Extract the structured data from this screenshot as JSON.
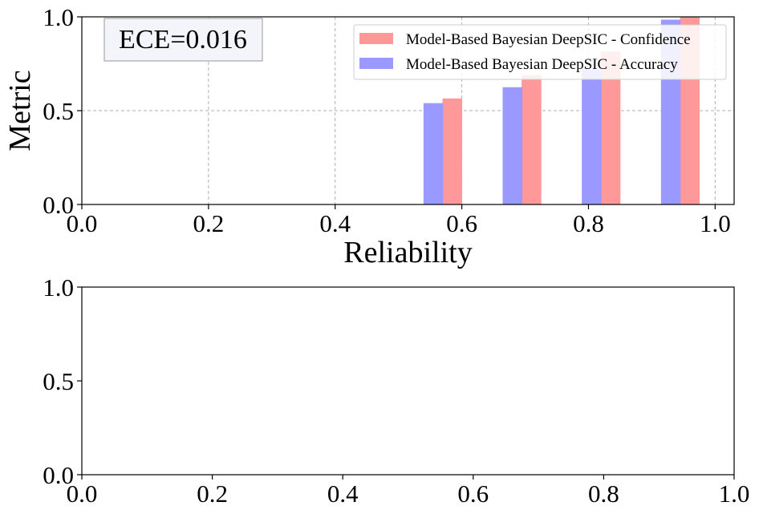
{
  "chart_data": [
    {
      "type": "bar",
      "xlabel": "Reliability",
      "ylabel": "Metric",
      "xlim": [
        0.0,
        1.03
      ],
      "ylim": [
        0.0,
        1.0
      ],
      "xticks": [
        "0.0",
        "0.2",
        "0.4",
        "0.6",
        "0.8",
        "1.0"
      ],
      "yticks": [
        "0.0",
        "0.5",
        "1.0"
      ],
      "grid": true,
      "legend_position": "top-right",
      "annotation": "ECE=0.016",
      "series": [
        {
          "name": "Model-Based Bayesian DeepSIC - Confidence",
          "color": "#ff9999",
          "x": [
            0.585,
            0.71,
            0.835,
            0.96
          ],
          "values": [
            0.565,
            0.69,
            0.815,
            1.0
          ]
        },
        {
          "name": "Model-Based Bayesian DeepSIC - Accuracy",
          "color": "#9999ff",
          "x": [
            0.555,
            0.68,
            0.805,
            0.93
          ],
          "values": [
            0.54,
            0.625,
            0.72,
            0.985
          ]
        }
      ],
      "bar_width": 0.031
    },
    {
      "type": "bar",
      "xlabel": "",
      "ylabel": "",
      "xlim": [
        0.0,
        1.0
      ],
      "ylim": [
        0.0,
        1.0
      ],
      "xticks": [
        "0.0",
        "0.2",
        "0.4",
        "0.6",
        "0.8",
        "1.0"
      ],
      "yticks": [
        "0.0",
        "0.5",
        "1.0"
      ],
      "grid": false,
      "series": []
    }
  ]
}
